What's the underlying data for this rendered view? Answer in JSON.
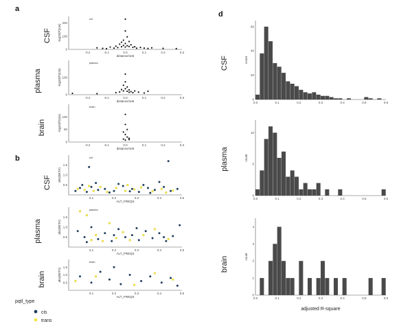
{
  "panel_labels": {
    "a": "a",
    "b": "b",
    "d": "d"
  },
  "legend": {
    "title": "pqtl_type",
    "items": [
      {
        "label": "cis",
        "color": "#1f3d5c"
      },
      {
        "label": "trans",
        "color": "#f2e64a"
      }
    ]
  },
  "chart_data": [
    {
      "id": "a-csf",
      "type": "scatter",
      "tissue_label": "CSF",
      "inner_title": "csf",
      "xlabel": "distance/1e6",
      "ylabel": "-log10(P)(cis)",
      "xlim": [
        -0.3,
        0.3
      ],
      "ylim": [
        0,
        250
      ],
      "xticks": [
        "-0.2",
        "-0.1",
        "0.0",
        "0.1",
        "0.2",
        "0.3"
      ],
      "yticks": [
        "0",
        "100",
        "200"
      ],
      "points": [
        [
          -0.15,
          12
        ],
        [
          -0.12,
          8
        ],
        [
          -0.08,
          18
        ],
        [
          -0.05,
          25
        ],
        [
          -0.03,
          40
        ],
        [
          -0.02,
          55
        ],
        [
          -0.01,
          70
        ],
        [
          0.0,
          140
        ],
        [
          0.0,
          230
        ],
        [
          0.01,
          95
        ],
        [
          0.02,
          60
        ],
        [
          0.03,
          35
        ],
        [
          0.05,
          20
        ],
        [
          0.08,
          15
        ],
        [
          0.1,
          10
        ],
        [
          0.14,
          12
        ],
        [
          0.2,
          8
        ],
        [
          0.27,
          6
        ],
        [
          -0.01,
          30
        ],
        [
          0.0,
          45
        ],
        [
          0.01,
          28
        ],
        [
          -0.04,
          14
        ],
        [
          0.04,
          16
        ],
        [
          -0.02,
          20
        ],
        [
          0.02,
          22
        ],
        [
          0.0,
          18
        ],
        [
          0.06,
          9
        ],
        [
          -0.06,
          10
        ],
        [
          -0.1,
          6
        ],
        [
          0.12,
          7
        ]
      ],
      "color": "#111111"
    },
    {
      "id": "a-plasma",
      "type": "scatter",
      "tissue_label": "plasma",
      "inner_title": "plasma",
      "xlabel": "distance/1e6",
      "ylabel": "-log10(P)(cis)",
      "xlim": [
        -0.3,
        0.3
      ],
      "ylim": [
        0,
        200
      ],
      "xticks": [
        "-0.2",
        "-0.1",
        "0.0",
        "0.1",
        "0.2",
        "0.3"
      ],
      "yticks": [
        "0",
        "100"
      ],
      "points": [
        [
          -0.28,
          8
        ],
        [
          -0.15,
          6
        ],
        [
          -0.05,
          12
        ],
        [
          -0.02,
          30
        ],
        [
          -0.01,
          55
        ],
        [
          0.0,
          120
        ],
        [
          0.0,
          75
        ],
        [
          0.01,
          45
        ],
        [
          0.02,
          28
        ],
        [
          0.03,
          18
        ],
        [
          0.05,
          22
        ],
        [
          0.07,
          15
        ],
        [
          0.1,
          10
        ],
        [
          0.12,
          20
        ],
        [
          -0.03,
          16
        ],
        [
          0.0,
          35
        ],
        [
          0.01,
          20
        ],
        [
          0.04,
          12
        ],
        [
          -0.01,
          22
        ],
        [
          0.02,
          14
        ]
      ],
      "color": "#111111"
    },
    {
      "id": "a-brain",
      "type": "scatter",
      "tissue_label": "brain",
      "inner_title": "brain",
      "xlabel": "distance/1e6",
      "ylabel": "-log10(P)(cis)",
      "xlim": [
        -0.3,
        0.3
      ],
      "ylim": [
        0,
        150
      ],
      "xticks": [
        "-0.2",
        "-0.1",
        "0.0",
        "0.1",
        "0.2",
        "0.3"
      ],
      "yticks": [
        "0",
        "50",
        "100"
      ],
      "points": [
        [
          0.0,
          110
        ],
        [
          0.0,
          70
        ],
        [
          0.01,
          50
        ],
        [
          -0.01,
          40
        ],
        [
          0.0,
          30
        ],
        [
          0.01,
          20
        ],
        [
          0.02,
          15
        ],
        [
          -0.01,
          12
        ],
        [
          0.0,
          8
        ],
        [
          0.02,
          10
        ]
      ],
      "color": "#111111"
    },
    {
      "id": "b-csf",
      "type": "scatter",
      "tissue_label": "CSF",
      "inner_title": "csf",
      "xlabel": "ALT_FREQS",
      "ylabel": "abs(BETA)",
      "xlim": [
        0,
        0.5
      ],
      "ylim": [
        0,
        2
      ],
      "xticks": [
        "0.1",
        "0.2",
        "0.3",
        "0.4",
        "0.5"
      ],
      "yticks": [
        "0.5",
        "1.0",
        "1.5"
      ],
      "series": [
        {
          "name": "cis",
          "points": [
            [
              0.03,
              0.2
            ],
            [
              0.05,
              0.35
            ],
            [
              0.08,
              0.15
            ],
            [
              0.1,
              0.4
            ],
            [
              0.13,
              0.25
            ],
            [
              0.16,
              0.3
            ],
            [
              0.2,
              0.2
            ],
            [
              0.24,
              0.45
            ],
            [
              0.28,
              0.3
            ],
            [
              0.31,
              0.15
            ],
            [
              0.35,
              0.35
            ],
            [
              0.38,
              0.25
            ],
            [
              0.42,
              0.4
            ],
            [
              0.45,
              0.2
            ],
            [
              0.48,
              0.3
            ],
            [
              0.12,
              0.6
            ],
            [
              0.22,
              0.55
            ],
            [
              0.33,
              0.5
            ],
            [
              0.4,
              0.65
            ],
            [
              0.06,
              0.5
            ],
            [
              0.18,
              0.12
            ],
            [
              0.27,
              0.18
            ],
            [
              0.44,
              1.7
            ],
            [
              0.09,
              1.4
            ],
            [
              0.36,
              0.1
            ]
          ]
        },
        {
          "name": "trans",
          "points": [
            [
              0.04,
              0.3
            ],
            [
              0.07,
              0.25
            ],
            [
              0.11,
              0.2
            ],
            [
              0.14,
              0.4
            ],
            [
              0.17,
              0.15
            ],
            [
              0.21,
              0.35
            ],
            [
              0.25,
              0.2
            ],
            [
              0.29,
              0.28
            ],
            [
              0.32,
              0.38
            ],
            [
              0.37,
              0.18
            ],
            [
              0.41,
              0.3
            ],
            [
              0.46,
              0.22
            ],
            [
              0.09,
              0.45
            ],
            [
              0.26,
              0.5
            ],
            [
              0.43,
              0.12
            ]
          ]
        }
      ]
    },
    {
      "id": "b-plasma",
      "type": "scatter",
      "tissue_label": "plasma",
      "inner_title": "plasma",
      "xlabel": "ALT_FREQS",
      "ylabel": "abs(BETA)",
      "xlim": [
        0,
        0.5
      ],
      "ylim": [
        0,
        2
      ],
      "xticks": [
        "0.1",
        "0.2",
        "0.3",
        "0.4",
        "0.5"
      ],
      "yticks": [
        "0.5",
        "1.0",
        "1.5"
      ],
      "series": [
        {
          "name": "cis",
          "points": [
            [
              0.04,
              0.8
            ],
            [
              0.07,
              0.5
            ],
            [
              0.1,
              1.0
            ],
            [
              0.13,
              0.4
            ],
            [
              0.16,
              0.7
            ],
            [
              0.19,
              0.3
            ],
            [
              0.22,
              0.9
            ],
            [
              0.25,
              0.5
            ],
            [
              0.28,
              0.6
            ],
            [
              0.31,
              0.35
            ],
            [
              0.34,
              0.8
            ],
            [
              0.37,
              0.45
            ],
            [
              0.4,
              0.7
            ],
            [
              0.43,
              0.3
            ],
            [
              0.46,
              0.55
            ],
            [
              0.49,
              1.1
            ],
            [
              0.08,
              0.25
            ],
            [
              0.2,
              0.6
            ],
            [
              0.3,
              0.95
            ],
            [
              0.42,
              0.5
            ]
          ]
        },
        {
          "name": "trans",
          "points": [
            [
              0.05,
              1.8
            ],
            [
              0.08,
              1.6
            ],
            [
              0.12,
              0.6
            ],
            [
              0.15,
              0.3
            ],
            [
              0.18,
              1.2
            ],
            [
              0.21,
              0.45
            ],
            [
              0.27,
              0.35
            ],
            [
              0.33,
              0.6
            ],
            [
              0.38,
              0.9
            ],
            [
              0.44,
              0.4
            ],
            [
              0.1,
              0.35
            ],
            [
              0.24,
              0.75
            ]
          ]
        }
      ]
    },
    {
      "id": "b-brain",
      "type": "scatter",
      "tissue_label": "brain",
      "inner_title": "brain",
      "xlabel": "ALT_FREQS",
      "ylabel": "abs(BETA)",
      "xlim": [
        0,
        0.5
      ],
      "ylim": [
        0,
        2
      ],
      "xticks": [
        "0.1",
        "0.2",
        "0.3",
        "0.4",
        "0.5"
      ],
      "yticks": [
        "0.5",
        "1.0",
        "1.5"
      ],
      "series": [
        {
          "name": "cis",
          "points": [
            [
              0.05,
              0.9
            ],
            [
              0.1,
              0.5
            ],
            [
              0.14,
              1.2
            ],
            [
              0.18,
              0.7
            ],
            [
              0.23,
              0.4
            ],
            [
              0.27,
              1.0
            ],
            [
              0.32,
              0.6
            ],
            [
              0.36,
              0.9
            ],
            [
              0.41,
              0.5
            ],
            [
              0.45,
              0.8
            ],
            [
              0.48,
              0.3
            ],
            [
              0.2,
              1.5
            ]
          ]
        },
        {
          "name": "trans",
          "points": [
            [
              0.03,
              0.6
            ],
            [
              0.12,
              0.9
            ],
            [
              0.29,
              0.35
            ],
            [
              0.38,
              1.1
            ],
            [
              0.46,
              0.7
            ]
          ]
        }
      ]
    },
    {
      "id": "d-csf",
      "type": "bar",
      "tissue_label": "CSF",
      "xlabel": "",
      "ylabel": "count",
      "xlim": [
        0,
        0.6
      ],
      "ylim": [
        0,
        65
      ],
      "xticks": [
        "0.0",
        "0.1",
        "0.2",
        "0.3",
        "0.4",
        "0.5",
        "0.6"
      ],
      "yticks": [
        "0",
        "20",
        "40",
        "60"
      ],
      "bin_width": 0.02,
      "values": [
        4,
        38,
        60,
        48,
        30,
        27,
        22,
        15,
        13,
        11,
        8,
        6,
        5,
        6,
        4,
        3,
        3,
        2,
        1,
        1,
        0,
        1,
        0,
        0,
        0,
        2,
        1,
        0,
        1,
        0
      ]
    },
    {
      "id": "d-plasma",
      "type": "bar",
      "tissue_label": "plasma",
      "xlabel": "",
      "ylabel": "count",
      "xlim": [
        0,
        0.6
      ],
      "ylim": [
        0,
        12
      ],
      "xticks": [
        "0.0",
        "0.1",
        "0.2",
        "0.3",
        "0.4",
        "0.5",
        "0.6"
      ],
      "yticks": [
        "0",
        "5",
        "10"
      ],
      "bin_width": 0.02,
      "values": [
        1,
        4,
        9,
        11,
        10,
        6,
        7,
        3,
        4,
        3,
        1,
        2,
        1,
        1,
        2,
        0,
        1,
        0,
        0,
        1,
        0,
        0,
        0,
        0,
        0,
        0,
        0,
        0,
        0,
        1
      ]
    },
    {
      "id": "d-brain",
      "type": "bar",
      "tissue_label": "brain",
      "xlabel": "adjusted R-square",
      "ylabel": "count",
      "xlim": [
        0,
        0.6
      ],
      "ylim": [
        0,
        4.5
      ],
      "xticks": [
        "0.0",
        "0.1",
        "0.2",
        "0.3",
        "0.4",
        "0.5",
        "0.6"
      ],
      "yticks": [
        "0",
        "1",
        "2",
        "3",
        "4"
      ],
      "bin_width": 0.02,
      "values": [
        0,
        1,
        0,
        2,
        3,
        4,
        2,
        1,
        1,
        0,
        2,
        0,
        1,
        0,
        1,
        2,
        1,
        0,
        1,
        0,
        1,
        0,
        0,
        0,
        0,
        0,
        1,
        0,
        0,
        1
      ]
    }
  ]
}
